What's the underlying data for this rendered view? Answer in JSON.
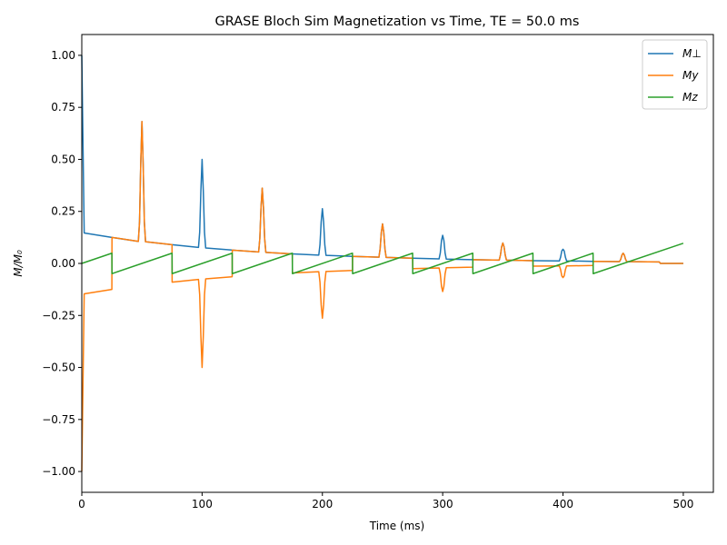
{
  "chart_data": {
    "type": "line",
    "title": "GRASE Bloch Sim Magnetization vs Time, TE = 50.0 ms",
    "xlabel": "Time (ms)",
    "ylabel": "M/M₀",
    "xlim": [
      0,
      525
    ],
    "ylim": [
      -1.1,
      1.1
    ],
    "x_ticks": [
      0,
      100,
      200,
      300,
      400,
      500
    ],
    "y_ticks": [
      -1.0,
      -0.75,
      -0.5,
      -0.25,
      0.0,
      0.25,
      0.5,
      0.75,
      1.0
    ],
    "x_tick_labels": [
      "0",
      "100",
      "200",
      "300",
      "400",
      "500"
    ],
    "y_tick_labels": [
      "−1.00",
      "−0.75",
      "−0.50",
      "−0.25",
      "0.00",
      "0.25",
      "0.50",
      "0.75",
      "1.00"
    ],
    "legend_position": "top-right",
    "grid": false,
    "series": [
      {
        "name": "M⊥",
        "color": "#1f77b4",
        "x": [
          0,
          2,
          25,
          47,
          48,
          49,
          50,
          51,
          52,
          53,
          75,
          97,
          98,
          99,
          100,
          101,
          102,
          103,
          125,
          147,
          148,
          149,
          150,
          151,
          152,
          153,
          175,
          197,
          198,
          199,
          200,
          201,
          202,
          203,
          225,
          247,
          248,
          249,
          250,
          251,
          252,
          253,
          275,
          297,
          298,
          299,
          300,
          301,
          302,
          303,
          325,
          347,
          348,
          349,
          350,
          351,
          352,
          353,
          375,
          397,
          398,
          399,
          400,
          401,
          402,
          403,
          425,
          447,
          448,
          449,
          450,
          451,
          452,
          453,
          480,
          481,
          500
        ],
        "y": [
          1.0,
          0.146,
          0.125,
          0.106,
          0.2,
          0.48,
          0.682,
          0.48,
          0.2,
          0.104,
          0.09,
          0.077,
          0.15,
          0.35,
          0.5,
          0.35,
          0.15,
          0.074,
          0.064,
          0.055,
          0.12,
          0.27,
          0.362,
          0.27,
          0.12,
          0.053,
          0.046,
          0.04,
          0.09,
          0.2,
          0.263,
          0.2,
          0.09,
          0.039,
          0.034,
          0.03,
          0.07,
          0.15,
          0.19,
          0.15,
          0.07,
          0.029,
          0.025,
          0.022,
          0.05,
          0.11,
          0.135,
          0.11,
          0.05,
          0.021,
          0.018,
          0.016,
          0.04,
          0.08,
          0.098,
          0.08,
          0.04,
          0.016,
          0.013,
          0.012,
          0.03,
          0.06,
          0.068,
          0.06,
          0.03,
          0.012,
          0.01,
          0.009,
          0.02,
          0.04,
          0.049,
          0.04,
          0.02,
          0.009,
          0.007,
          0.0,
          0.0
        ]
      },
      {
        "name": "My",
        "color": "#ff7f0e",
        "x": [
          0,
          2,
          25,
          25.1,
          47,
          48,
          49,
          50,
          51,
          52,
          53,
          75,
          75.1,
          97,
          98,
          99,
          100,
          101,
          102,
          103,
          125,
          125.1,
          147,
          148,
          149,
          150,
          151,
          152,
          153,
          175,
          175.1,
          197,
          198,
          199,
          200,
          201,
          202,
          203,
          225,
          225.1,
          247,
          248,
          249,
          250,
          251,
          252,
          253,
          275,
          275.1,
          297,
          298,
          299,
          300,
          301,
          302,
          303,
          325,
          325.1,
          347,
          348,
          349,
          350,
          351,
          352,
          353,
          375,
          375.1,
          397,
          398,
          399,
          400,
          401,
          402,
          403,
          425,
          425.1,
          447,
          448,
          449,
          450,
          451,
          452,
          453,
          480,
          481,
          500
        ],
        "y": [
          -1.0,
          -0.146,
          -0.125,
          0.125,
          0.106,
          0.2,
          0.48,
          0.682,
          0.48,
          0.2,
          0.104,
          0.09,
          -0.09,
          -0.077,
          -0.15,
          -0.35,
          -0.5,
          -0.35,
          -0.15,
          -0.074,
          -0.064,
          0.064,
          0.055,
          0.12,
          0.27,
          0.362,
          0.27,
          0.12,
          0.053,
          0.046,
          -0.046,
          -0.04,
          -0.09,
          -0.2,
          -0.263,
          -0.2,
          -0.09,
          -0.039,
          -0.034,
          0.034,
          0.03,
          0.07,
          0.15,
          0.19,
          0.15,
          0.07,
          0.029,
          0.025,
          -0.025,
          -0.022,
          -0.05,
          -0.11,
          -0.135,
          -0.11,
          -0.05,
          -0.021,
          -0.018,
          0.018,
          0.016,
          0.04,
          0.08,
          0.098,
          0.08,
          0.04,
          0.016,
          0.013,
          -0.013,
          -0.012,
          -0.03,
          -0.06,
          -0.068,
          -0.06,
          -0.03,
          -0.012,
          -0.01,
          0.01,
          0.009,
          0.02,
          0.04,
          0.049,
          0.04,
          0.02,
          0.009,
          0.007,
          0.0,
          0.0
        ]
      },
      {
        "name": "Mz",
        "color": "#2ca02c",
        "x": [
          0,
          25,
          25.1,
          75,
          75.1,
          125,
          125.1,
          175,
          175.1,
          225,
          225.1,
          275,
          275.1,
          325,
          325.1,
          375,
          375.1,
          425,
          425.1,
          500
        ],
        "y": [
          0.0,
          0.049,
          -0.049,
          0.049,
          -0.049,
          0.049,
          -0.049,
          0.049,
          -0.049,
          0.049,
          -0.049,
          0.049,
          -0.049,
          0.049,
          -0.049,
          0.049,
          -0.049,
          0.049,
          -0.049,
          0.097
        ]
      }
    ]
  }
}
